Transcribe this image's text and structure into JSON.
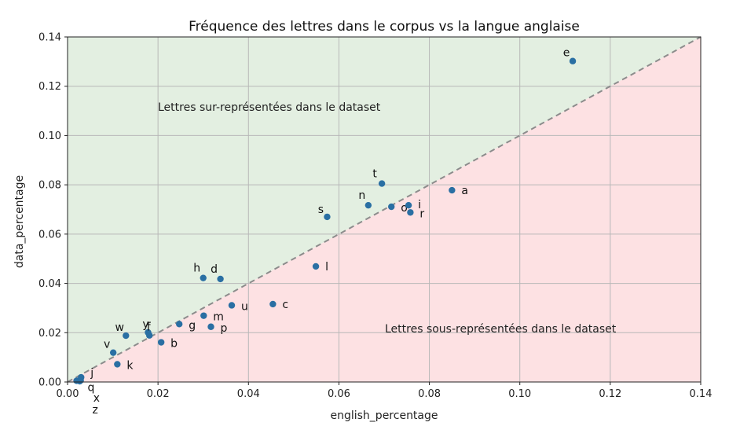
{
  "chart_data": {
    "type": "scatter",
    "title": "Fréquence des lettres dans le corpus vs la langue anglaise",
    "xlabel": "english_percentage",
    "ylabel": "data_percentage",
    "xlim": [
      0.0,
      0.14
    ],
    "ylim": [
      0.0,
      0.14
    ],
    "xticks": [
      "0.00",
      "0.02",
      "0.04",
      "0.06",
      "0.08",
      "0.10",
      "0.12",
      "0.14"
    ],
    "yticks": [
      "0.00",
      "0.02",
      "0.04",
      "0.06",
      "0.08",
      "0.10",
      "0.12",
      "0.14"
    ],
    "grid": true,
    "reference_line": "y = x",
    "regions": {
      "above": {
        "label": "Lettres sur-représentées dans le dataset",
        "color": "#e3efe1"
      },
      "below": {
        "label": "Lettres sous-représentées dans le dataset",
        "color": "#fde1e3"
      }
    },
    "point_color": "#2a6fa3",
    "line_color": "#8c8c8c",
    "points": [
      {
        "label": "e",
        "x": 0.1117,
        "y": 0.1302
      },
      {
        "label": "t",
        "x": 0.0695,
        "y": 0.0805
      },
      {
        "label": "a",
        "x": 0.085,
        "y": 0.0778
      },
      {
        "label": "n",
        "x": 0.0665,
        "y": 0.0717
      },
      {
        "label": "o",
        "x": 0.0716,
        "y": 0.0711
      },
      {
        "label": "i",
        "x": 0.0754,
        "y": 0.0717
      },
      {
        "label": "r",
        "x": 0.0758,
        "y": 0.0688
      },
      {
        "label": "s",
        "x": 0.0574,
        "y": 0.067
      },
      {
        "label": "l",
        "x": 0.0549,
        "y": 0.0469
      },
      {
        "label": "h",
        "x": 0.03,
        "y": 0.0422
      },
      {
        "label": "d",
        "x": 0.0338,
        "y": 0.0418
      },
      {
        "label": "c",
        "x": 0.0454,
        "y": 0.0316
      },
      {
        "label": "u",
        "x": 0.0363,
        "y": 0.0311
      },
      {
        "label": "m",
        "x": 0.0301,
        "y": 0.0269
      },
      {
        "label": "p",
        "x": 0.0317,
        "y": 0.0224
      },
      {
        "label": "g",
        "x": 0.0247,
        "y": 0.0235
      },
      {
        "label": "w",
        "x": 0.0129,
        "y": 0.0188
      },
      {
        "label": "y",
        "x": 0.0178,
        "y": 0.0201
      },
      {
        "label": "f",
        "x": 0.0181,
        "y": 0.0189
      },
      {
        "label": "b",
        "x": 0.0207,
        "y": 0.0161
      },
      {
        "label": "v",
        "x": 0.0101,
        "y": 0.0119
      },
      {
        "label": "k",
        "x": 0.011,
        "y": 0.0072
      },
      {
        "label": "j",
        "x": 0.003,
        "y": 0.0019
      },
      {
        "label": "q",
        "x": 0.002,
        "y": 0.0005
      },
      {
        "label": "x",
        "x": 0.0029,
        "y": 0.0007
      },
      {
        "label": "z",
        "x": 0.0027,
        "y": 0.0003
      }
    ]
  }
}
